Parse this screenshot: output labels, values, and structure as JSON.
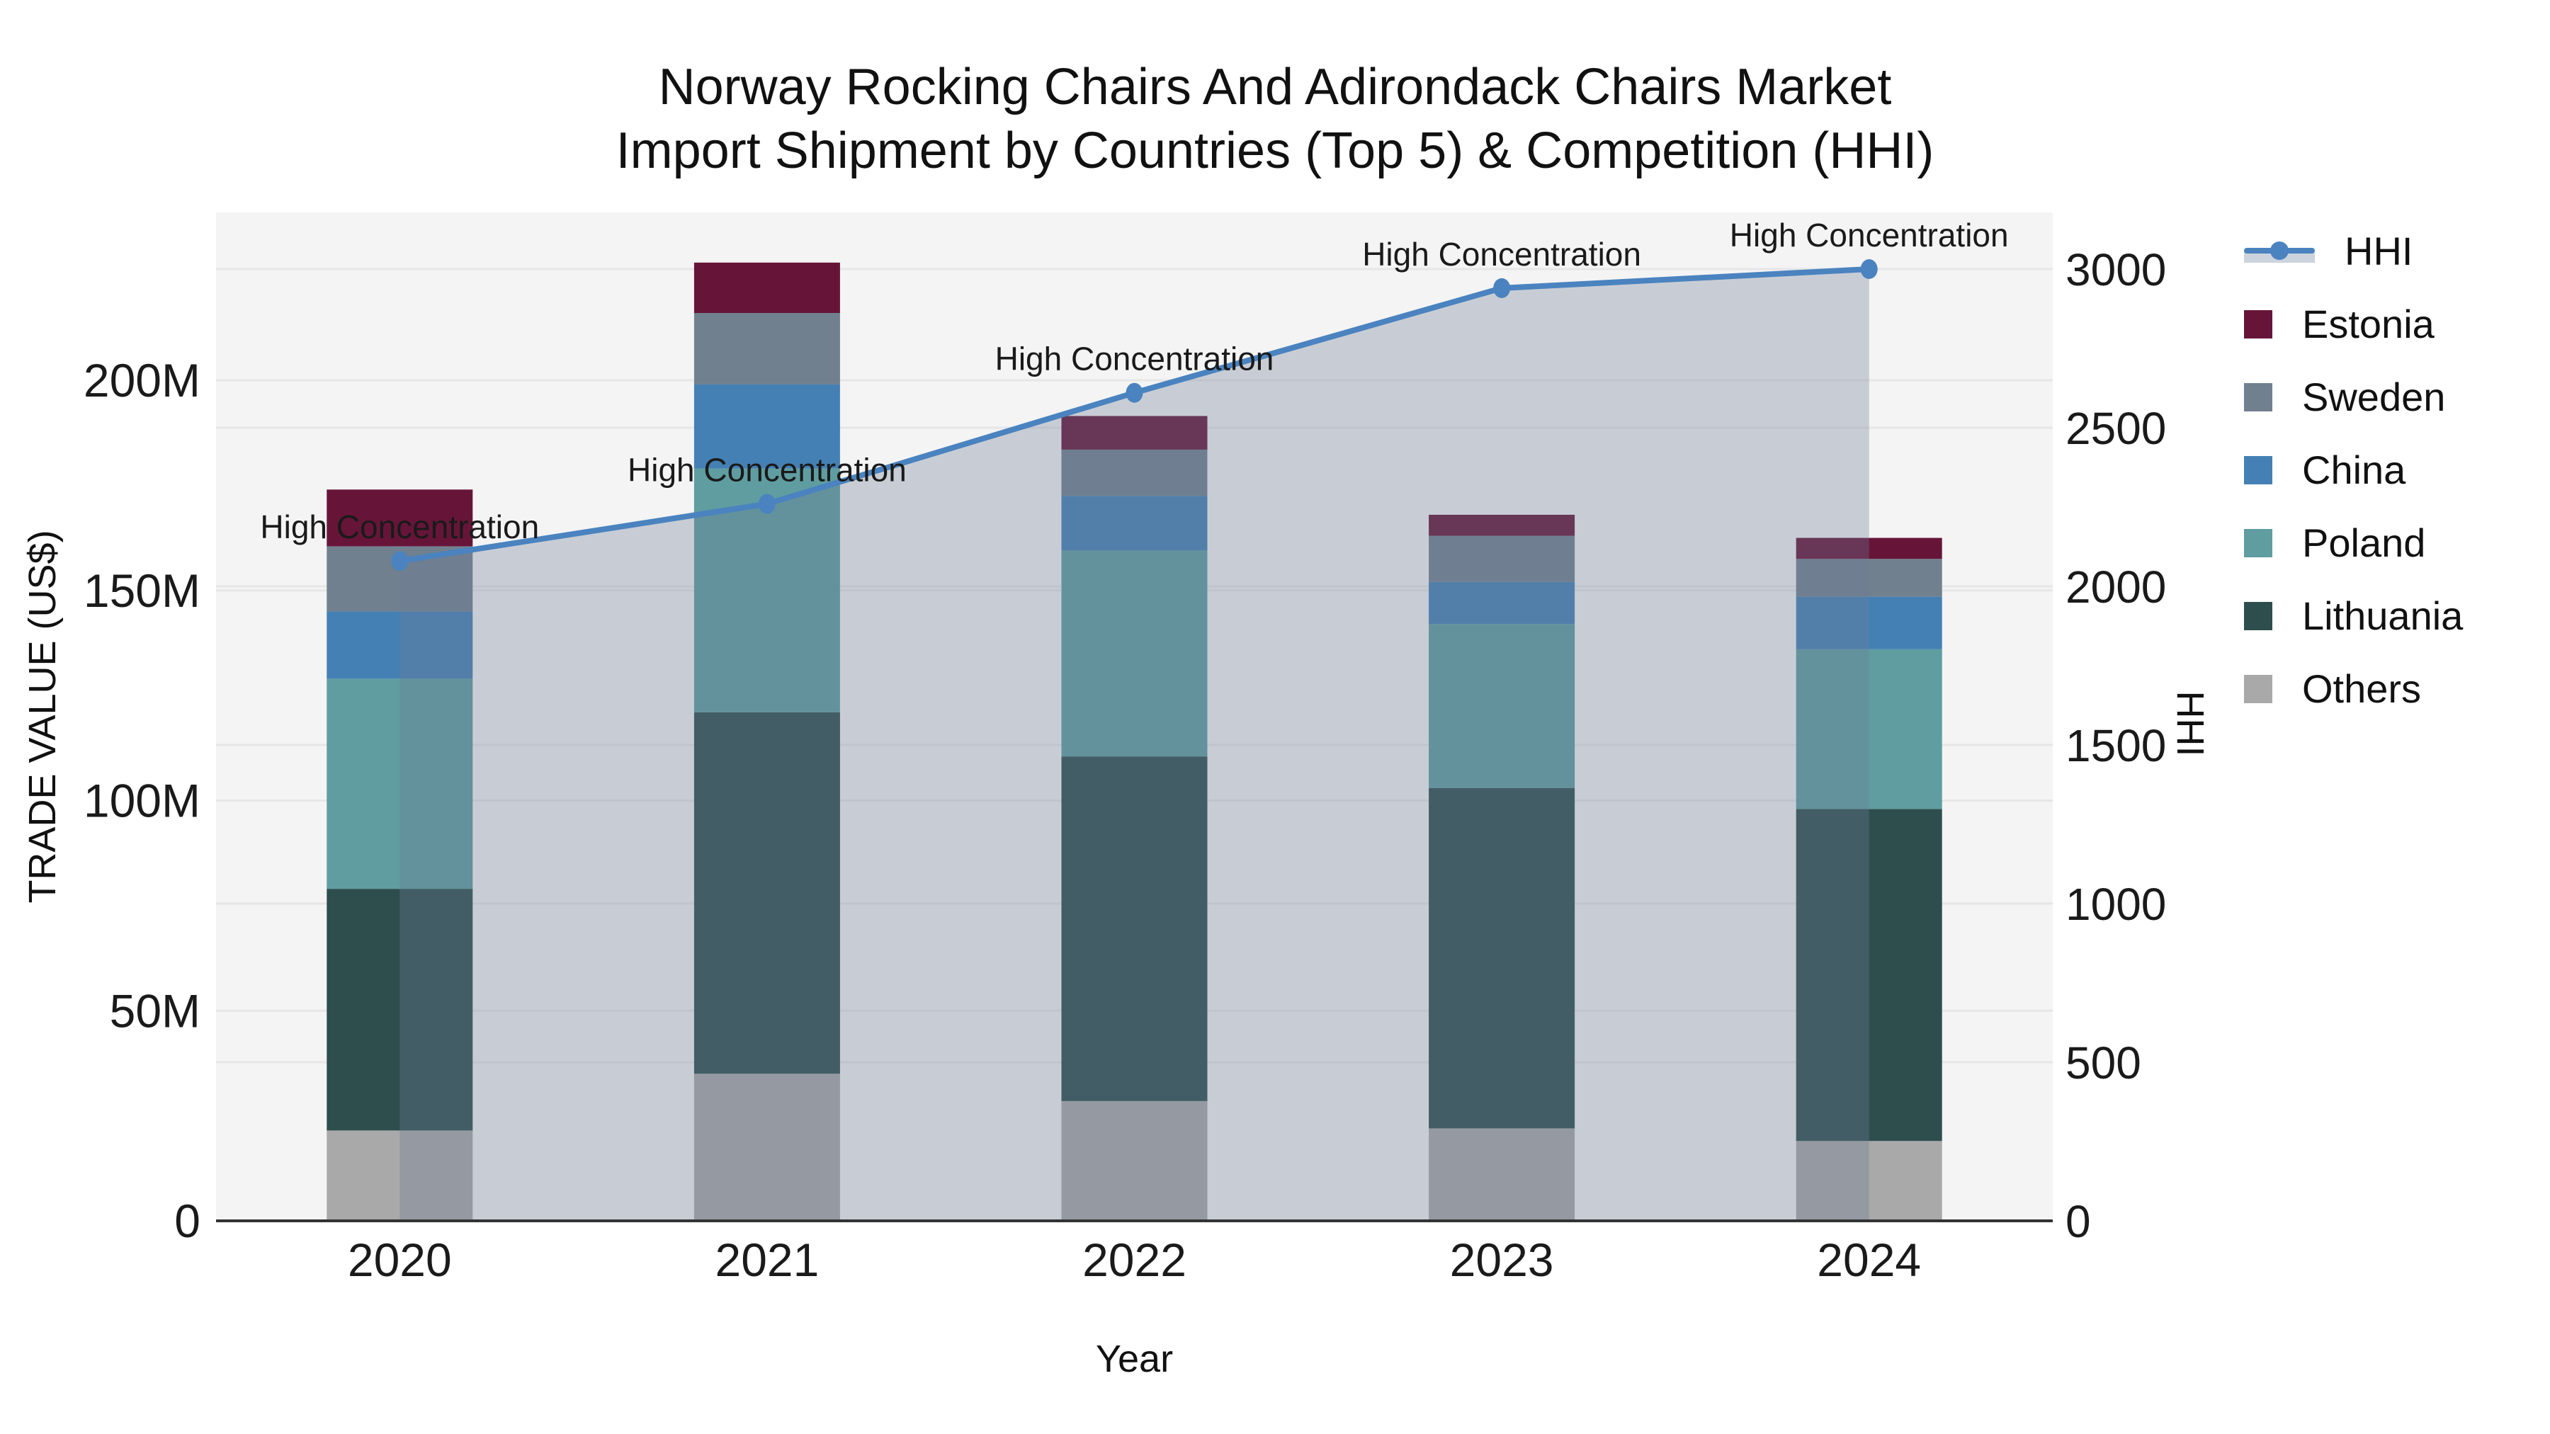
{
  "title": {
    "line1": "Norway Rocking Chairs And Adirondack Chairs Market",
    "line2": "Import Shipment by Countries (Top 5) & Competition (HHI)"
  },
  "colors": {
    "estonia": "#661539",
    "sweden": "#71808f",
    "china": "#4480b4",
    "poland": "#5f9da0",
    "lithuania": "#2e4e4e",
    "others": "#a9a9a9",
    "hhi_line": "#4a83bf",
    "hhi_area": "rgba(110,125,150,0.32)",
    "plot_bg": "#f4f4f4",
    "grid": "#e6e6e8",
    "axis_line": "#333333"
  },
  "legend": [
    {
      "label": "HHI",
      "color": "#4a83bf",
      "type": "line"
    },
    {
      "label": "Estonia",
      "color": "#661539",
      "type": "swatch"
    },
    {
      "label": "Sweden",
      "color": "#71808f",
      "type": "swatch"
    },
    {
      "label": "China",
      "color": "#4480b4",
      "type": "swatch"
    },
    {
      "label": "Poland",
      "color": "#5f9da0",
      "type": "swatch"
    },
    {
      "label": "Lithuania",
      "color": "#2e4e4e",
      "type": "swatch"
    },
    {
      "label": "Others",
      "color": "#a9a9a9",
      "type": "swatch"
    }
  ],
  "chart_data": {
    "type": "bar+line",
    "title": "Norway Rocking Chairs And Adirondack Chairs Market — Import Shipment by Countries (Top 5) & Competition (HHI)",
    "xlabel": "Year",
    "ylabel_left": "TRADE VALUE (US$)",
    "ylabel_right": "HHI",
    "categories": [
      "2020",
      "2021",
      "2022",
      "2023",
      "2024"
    ],
    "stack_order_bottom_to_top": [
      "Others",
      "Lithuania",
      "Poland",
      "China",
      "Sweden",
      "Estonia"
    ],
    "series": [
      {
        "name": "Others",
        "color": "#a9a9a9",
        "unit": "M US$",
        "values": [
          21.5,
          35,
          28.5,
          22,
          19
        ]
      },
      {
        "name": "Lithuania",
        "color": "#2e4e4e",
        "unit": "M US$",
        "values": [
          57.5,
          86,
          82,
          81,
          79
        ]
      },
      {
        "name": "Poland",
        "color": "#5f9da0",
        "unit": "M US$",
        "values": [
          50,
          58,
          49,
          39,
          38
        ]
      },
      {
        "name": "China",
        "color": "#4480b4",
        "unit": "M US$",
        "values": [
          16,
          20,
          13,
          10,
          12.5
        ]
      },
      {
        "name": "Sweden",
        "color": "#71808f",
        "unit": "M US$",
        "values": [
          15.5,
          17,
          11,
          11,
          9
        ]
      },
      {
        "name": "Estonia",
        "color": "#661539",
        "unit": "M US$",
        "values": [
          13.5,
          12,
          8,
          5,
          5
        ]
      }
    ],
    "line_series": {
      "name": "HHI",
      "color": "#4a83bf",
      "axis": "right",
      "values": [
        2080,
        2260,
        2610,
        2940,
        3000
      ]
    },
    "annotations": [
      "High Concentration",
      "High Concentration",
      "High Concentration",
      "High Concentration",
      "High Concentration"
    ],
    "yticks_left": [
      {
        "label": "0",
        "value": 0
      },
      {
        "label": "50M",
        "value": 50
      },
      {
        "label": "100M",
        "value": 100
      },
      {
        "label": "150M",
        "value": 150
      },
      {
        "label": "200M",
        "value": 200
      }
    ],
    "yticks_right": [
      {
        "label": "0",
        "value": 0
      },
      {
        "label": "500",
        "value": 500
      },
      {
        "label": "1000",
        "value": 1000
      },
      {
        "label": "1500",
        "value": 1500
      },
      {
        "label": "2000",
        "value": 2000
      },
      {
        "label": "2500",
        "value": 2500
      },
      {
        "label": "3000",
        "value": 3000
      }
    ],
    "ylim_left_M": [
      0,
      240
    ],
    "ylim_right": [
      0,
      3180
    ],
    "grid": true,
    "legend_position": "right"
  }
}
